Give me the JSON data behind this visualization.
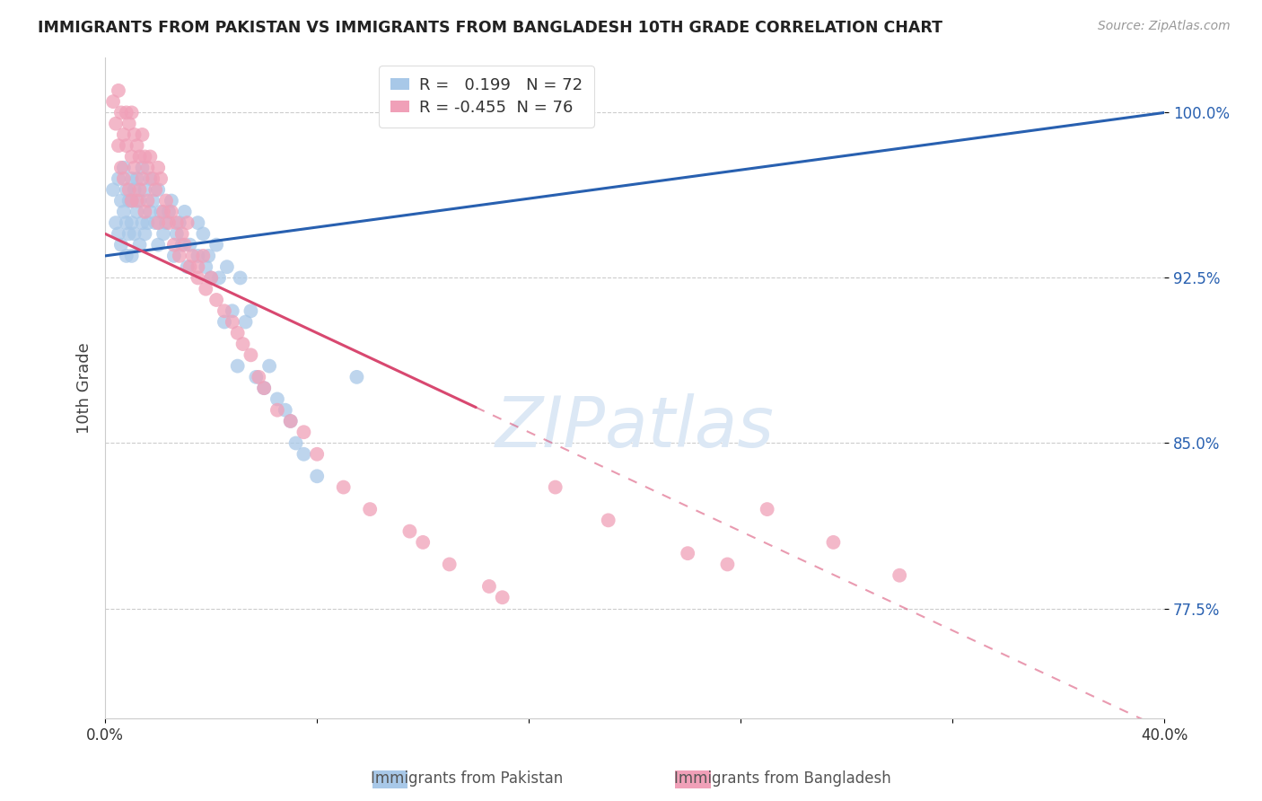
{
  "title": "IMMIGRANTS FROM PAKISTAN VS IMMIGRANTS FROM BANGLADESH 10TH GRADE CORRELATION CHART",
  "source": "Source: ZipAtlas.com",
  "ylabel": "10th Grade",
  "ylabel_ticks": [
    77.5,
    85.0,
    92.5,
    100.0
  ],
  "ylabel_tick_labels": [
    "77.5%",
    "85.0%",
    "92.5%",
    "100.0%"
  ],
  "xlim": [
    0.0,
    40.0
  ],
  "ylim": [
    72.5,
    102.5
  ],
  "legend1_label": "Immigrants from Pakistan",
  "legend2_label": "Immigrants from Bangladesh",
  "R_pakistan": 0.199,
  "N_pakistan": 72,
  "R_bangladesh": -0.455,
  "N_bangladesh": 76,
  "blue_color": "#a8c8e8",
  "pink_color": "#f0a0b8",
  "blue_line_color": "#2860b0",
  "pink_line_color": "#d84870",
  "background_color": "#ffffff",
  "blue_line_x0": 0.0,
  "blue_line_y0": 93.5,
  "blue_line_x1": 40.0,
  "blue_line_y1": 100.0,
  "pink_line_x0": 0.0,
  "pink_line_y0": 94.5,
  "pink_line_x1": 40.0,
  "pink_line_y1": 72.0,
  "pink_solid_end_x": 14.0,
  "pakistan_dots_x": [
    0.3,
    0.4,
    0.5,
    0.5,
    0.6,
    0.6,
    0.7,
    0.7,
    0.8,
    0.8,
    0.8,
    0.9,
    0.9,
    1.0,
    1.0,
    1.0,
    1.0,
    1.1,
    1.1,
    1.2,
    1.2,
    1.3,
    1.3,
    1.4,
    1.4,
    1.5,
    1.5,
    1.6,
    1.7,
    1.7,
    1.8,
    1.9,
    2.0,
    2.0,
    2.1,
    2.2,
    2.3,
    2.4,
    2.5,
    2.6,
    2.7,
    2.8,
    2.9,
    3.0,
    3.1,
    3.2,
    3.5,
    3.5,
    3.7,
    3.8,
    3.9,
    4.0,
    4.2,
    4.3,
    4.5,
    4.6,
    4.8,
    5.0,
    5.1,
    5.3,
    5.5,
    5.7,
    6.0,
    6.2,
    6.5,
    6.8,
    7.0,
    7.2,
    7.5,
    8.0,
    9.5,
    14.5
  ],
  "pakistan_dots_y": [
    96.5,
    95.0,
    97.0,
    94.5,
    96.0,
    94.0,
    97.5,
    95.5,
    96.5,
    95.0,
    93.5,
    96.0,
    94.5,
    97.0,
    96.0,
    95.0,
    93.5,
    96.5,
    94.5,
    97.0,
    95.5,
    96.0,
    94.0,
    97.5,
    95.0,
    96.5,
    94.5,
    95.0,
    97.0,
    95.5,
    96.0,
    95.0,
    96.5,
    94.0,
    95.5,
    94.5,
    95.0,
    95.5,
    96.0,
    93.5,
    94.5,
    95.0,
    94.0,
    95.5,
    93.0,
    94.0,
    93.5,
    95.0,
    94.5,
    93.0,
    93.5,
    92.5,
    94.0,
    92.5,
    90.5,
    93.0,
    91.0,
    88.5,
    92.5,
    90.5,
    91.0,
    88.0,
    87.5,
    88.5,
    87.0,
    86.5,
    86.0,
    85.0,
    84.5,
    83.5,
    88.0,
    99.8
  ],
  "bangladesh_dots_x": [
    0.3,
    0.4,
    0.5,
    0.5,
    0.6,
    0.6,
    0.7,
    0.7,
    0.8,
    0.8,
    0.9,
    0.9,
    1.0,
    1.0,
    1.0,
    1.1,
    1.1,
    1.2,
    1.2,
    1.3,
    1.3,
    1.4,
    1.4,
    1.5,
    1.5,
    1.6,
    1.6,
    1.7,
    1.8,
    1.9,
    2.0,
    2.0,
    2.1,
    2.2,
    2.3,
    2.4,
    2.5,
    2.6,
    2.7,
    2.8,
    2.9,
    3.0,
    3.1,
    3.2,
    3.3,
    3.5,
    3.5,
    3.7,
    3.8,
    4.0,
    4.2,
    4.5,
    4.8,
    5.0,
    5.2,
    5.5,
    5.8,
    6.0,
    6.5,
    7.0,
    7.5,
    8.0,
    9.0,
    10.0,
    11.5,
    12.0,
    13.0,
    14.5,
    15.0,
    17.0,
    19.0,
    22.0,
    23.5,
    25.0,
    27.5,
    30.0
  ],
  "bangladesh_dots_y": [
    100.5,
    99.5,
    101.0,
    98.5,
    100.0,
    97.5,
    99.0,
    97.0,
    100.0,
    98.5,
    99.5,
    96.5,
    100.0,
    98.0,
    96.0,
    99.0,
    97.5,
    98.5,
    96.0,
    98.0,
    96.5,
    99.0,
    97.0,
    98.0,
    95.5,
    97.5,
    96.0,
    98.0,
    97.0,
    96.5,
    97.5,
    95.0,
    97.0,
    95.5,
    96.0,
    95.0,
    95.5,
    94.0,
    95.0,
    93.5,
    94.5,
    94.0,
    95.0,
    93.0,
    93.5,
    93.0,
    92.5,
    93.5,
    92.0,
    92.5,
    91.5,
    91.0,
    90.5,
    90.0,
    89.5,
    89.0,
    88.0,
    87.5,
    86.5,
    86.0,
    85.5,
    84.5,
    83.0,
    82.0,
    81.0,
    80.5,
    79.5,
    78.5,
    78.0,
    83.0,
    81.5,
    80.0,
    79.5,
    82.0,
    80.5,
    79.0
  ]
}
